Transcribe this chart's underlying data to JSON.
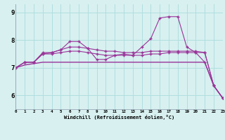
{
  "x": [
    0,
    1,
    2,
    3,
    4,
    5,
    6,
    7,
    8,
    9,
    10,
    11,
    12,
    13,
    14,
    15,
    16,
    17,
    18,
    19,
    20,
    21,
    22,
    23
  ],
  "line1": [
    7.0,
    7.2,
    7.2,
    7.55,
    7.55,
    7.65,
    7.95,
    7.95,
    7.7,
    7.3,
    7.3,
    7.45,
    7.5,
    7.45,
    7.75,
    8.05,
    8.8,
    8.85,
    8.85,
    7.75,
    7.55,
    7.2,
    6.35,
    5.9
  ],
  "line2": [
    7.0,
    7.2,
    7.2,
    7.5,
    7.5,
    7.55,
    7.6,
    7.6,
    7.55,
    7.5,
    7.45,
    7.45,
    7.45,
    7.45,
    7.45,
    7.5,
    7.5,
    7.55,
    7.55,
    7.55,
    7.55,
    7.55,
    6.35,
    5.9
  ],
  "line3": [
    7.0,
    7.2,
    7.2,
    7.5,
    7.55,
    7.65,
    7.75,
    7.75,
    7.7,
    7.65,
    7.6,
    7.6,
    7.55,
    7.55,
    7.55,
    7.6,
    7.6,
    7.6,
    7.6,
    7.6,
    7.6,
    7.55,
    6.35,
    5.9
  ],
  "line4": [
    7.0,
    7.1,
    7.15,
    7.2,
    7.2,
    7.2,
    7.2,
    7.2,
    7.2,
    7.2,
    7.2,
    7.2,
    7.2,
    7.2,
    7.2,
    7.2,
    7.2,
    7.2,
    7.2,
    7.2,
    7.2,
    7.2,
    6.35,
    5.9
  ],
  "ylim": [
    5.5,
    9.3
  ],
  "xlim": [
    0,
    23
  ],
  "yticks": [
    6,
    7,
    8,
    9
  ],
  "xticks": [
    0,
    1,
    2,
    3,
    4,
    5,
    6,
    7,
    8,
    9,
    10,
    11,
    12,
    13,
    14,
    15,
    16,
    17,
    18,
    19,
    20,
    21,
    22,
    23
  ],
  "xlabel": "Windchill (Refroidissement éolien,°C)",
  "line_color": "#993399",
  "bg_color": "#d8f0f0",
  "grid_color": "#b0dede"
}
